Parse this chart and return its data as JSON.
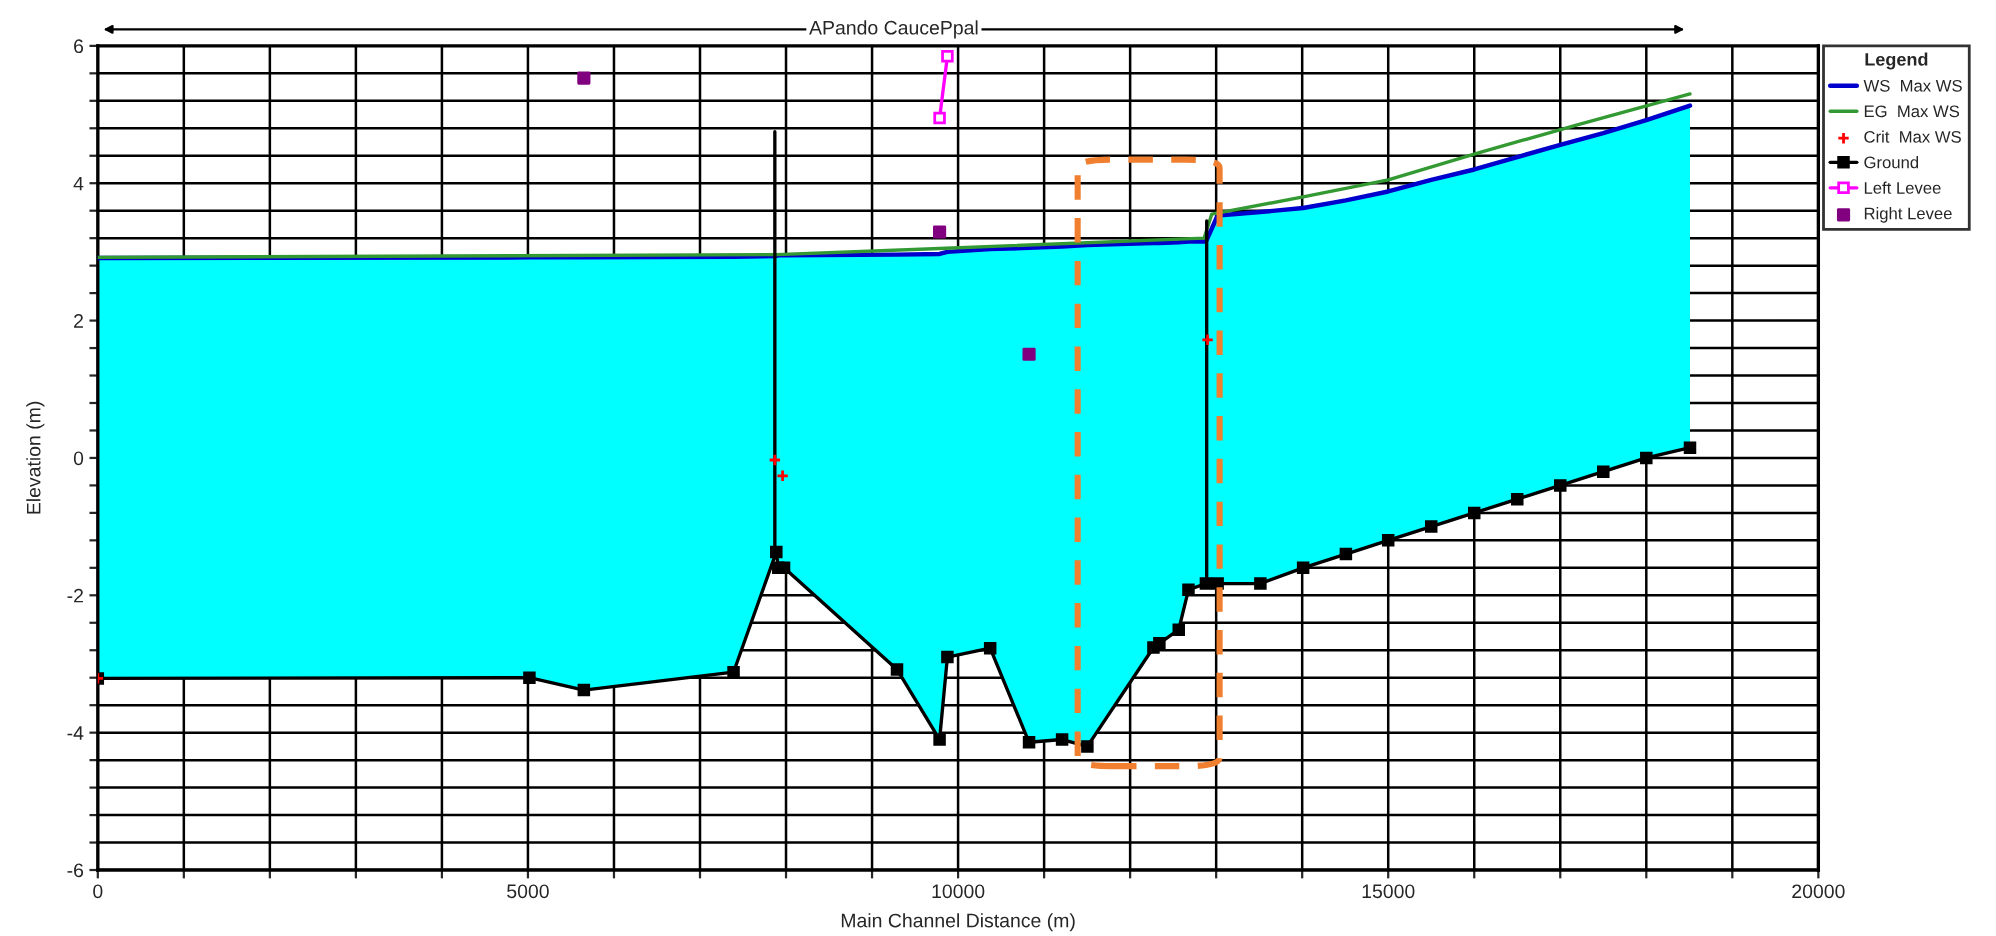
{
  "chart_data": {
    "type": "line",
    "xlabel": "Main Channel Distance (m)",
    "ylabel": "Elevation (m)",
    "legend_title": "Legend",
    "annotations": [
      "APando CaucePpal"
    ],
    "xlim": [
      0,
      20000
    ],
    "xticks": [
      0,
      {
        "value": 1000,
        "label": null
      },
      {
        "value": 2000,
        "label": null
      },
      {
        "value": 3000,
        "label": null
      },
      {
        "value": 4000,
        "label": null
      },
      5000,
      {
        "value": 6000,
        "label": null
      },
      {
        "value": 7000,
        "label": null
      },
      {
        "value": 8000,
        "label": null
      },
      {
        "value": 9000,
        "label": null
      },
      10000,
      {
        "value": 11000,
        "label": null
      },
      {
        "value": 12000,
        "label": null
      },
      {
        "value": 13000,
        "label": null
      },
      {
        "value": 14000,
        "label": null
      },
      15000,
      {
        "value": 16000,
        "label": null
      },
      {
        "value": 17000,
        "label": null
      },
      {
        "value": 18000,
        "label": null
      },
      {
        "value": 19000,
        "label": null
      },
      20000
    ],
    "ylim": [
      -6,
      6
    ],
    "yticks": [
      -6,
      {
        "value": -5.6,
        "label": null
      },
      {
        "value": -5.2,
        "label": null
      },
      {
        "value": -4.8,
        "label": null
      },
      {
        "value": -4.4,
        "label": null
      },
      -4,
      {
        "value": -3.6,
        "label": null
      },
      {
        "value": -3.2,
        "label": null
      },
      {
        "value": -2.8,
        "label": null
      },
      {
        "value": -2.4,
        "label": null
      },
      -2,
      {
        "value": -1.6,
        "label": null
      },
      {
        "value": -1.2,
        "label": null
      },
      {
        "value": -0.8,
        "label": null
      },
      {
        "value": -0.4,
        "label": null
      },
      0,
      {
        "value": 0.4,
        "label": null
      },
      {
        "value": 0.8,
        "label": null
      },
      {
        "value": 1.2,
        "label": null
      },
      {
        "value": 1.6,
        "label": null
      },
      2,
      {
        "value": 2.4,
        "label": null
      },
      {
        "value": 2.8,
        "label": null
      },
      {
        "value": 3.2,
        "label": null
      },
      {
        "value": 3.6,
        "label": null
      },
      4,
      {
        "value": 4.4,
        "label": null
      },
      {
        "value": 4.8,
        "label": null
      },
      {
        "value": 5.2,
        "label": null
      },
      {
        "value": 5.6,
        "label": null
      },
      6
    ],
    "grid": true,
    "legend": "right",
    "series": [
      {
        "name": "WS  Max WS",
        "color": "#0000cc",
        "marker": "none",
        "x": [
          0,
          5017,
          5650,
          7390,
          7887,
          7910,
          7977,
          9290,
          9785,
          9876,
          10373,
          10825,
          11209,
          11503,
          12271,
          12340,
          12565,
          12678,
          12881,
          13017,
          13514,
          14011,
          14508,
          15000,
          15500,
          16000,
          16500,
          17000,
          17500,
          18000,
          18508
        ],
        "values": [
          2.91,
          2.92,
          2.92,
          2.93,
          2.94,
          2.95,
          2.95,
          2.96,
          2.97,
          3.0,
          3.04,
          3.06,
          3.08,
          3.1,
          3.13,
          3.13,
          3.14,
          3.15,
          3.15,
          3.53,
          3.58,
          3.64,
          3.75,
          3.88,
          4.05,
          4.2,
          4.38,
          4.56,
          4.73,
          4.92,
          5.13
        ],
        "upper": [
          2.91,
          2.92,
          2.92,
          2.93,
          2.94,
          2.95,
          2.95,
          2.96,
          2.97,
          3.0,
          3.04,
          3.06,
          3.08,
          3.1,
          3.13,
          3.13,
          3.14,
          3.15,
          3.15,
          3.53,
          3.58,
          3.64,
          3.75,
          3.88,
          4.05,
          4.2,
          4.38,
          4.56,
          4.73,
          4.92,
          5.13
        ],
        "lower": [
          -3.21,
          -3.2,
          -3.38,
          -3.12,
          -1.37,
          -1.6,
          -1.6,
          -3.08,
          -4.1,
          -2.9,
          -2.77,
          -4.14,
          -4.1,
          -4.2,
          -2.76,
          -2.7,
          -2.5,
          -1.92,
          -1.83,
          -1.83,
          -1.83,
          -1.6,
          -1.4,
          -1.2,
          -1.0,
          -0.8,
          -0.6,
          -0.4,
          -0.2,
          0.0,
          0.15
        ]
      },
      {
        "name": "EG  Max WS",
        "color": "#339933",
        "marker": "none",
        "x": [
          0,
          7887,
          9785,
          12859,
          12949,
          14011,
          15000,
          16068,
          17198,
          18508
        ],
        "values": [
          2.92,
          2.96,
          3.05,
          3.2,
          3.55,
          3.8,
          4.05,
          4.45,
          4.85,
          5.3
        ]
      },
      {
        "name": "Crit  Max WS",
        "type": "scatter",
        "color": "#ff0000",
        "marker": "cross",
        "x": [
          0,
          7870,
          7960,
          12900
        ],
        "values": [
          -3.21,
          -0.03,
          -0.26,
          1.72
        ]
      },
      {
        "name": "Ground",
        "color": "#000000",
        "marker": "square",
        "x": [
          0,
          5017,
          5650,
          7390,
          7887,
          7910,
          7977,
          9290,
          9785,
          9876,
          10373,
          10825,
          11209,
          11503,
          12271,
          12340,
          12565,
          12678,
          12881,
          13017,
          13514,
          14011,
          14508,
          15000,
          15500,
          16000,
          16500,
          17000,
          17500,
          18000,
          18508
        ],
        "values": [
          -3.21,
          -3.2,
          -3.38,
          -3.12,
          -1.37,
          -1.6,
          -1.6,
          -3.08,
          -4.1,
          -2.9,
          -2.77,
          -4.14,
          -4.1,
          -4.2,
          -2.76,
          -2.7,
          -2.5,
          -1.92,
          -1.83,
          -1.83,
          -1.83,
          -1.6,
          -1.4,
          -1.2,
          -1.0,
          -0.8,
          -0.6,
          -0.4,
          -0.2,
          0.0,
          0.15
        ]
      },
      {
        "name": "Left Levee",
        "color": "#ff00ff",
        "marker": "square",
        "x": [
          9785,
          9876
        ],
        "values": [
          4.95,
          5.85
        ]
      },
      {
        "name": "Right Levee",
        "type": "scatter",
        "color": "#800080",
        "marker": "square",
        "x": [
          5650,
          9785,
          10825
        ],
        "values": [
          5.53,
          3.29,
          1.51
        ]
      },
      {
        "color": "#000000",
        "marker": "none",
        "x": [
          7870,
          7870
        ],
        "values": [
          -1.37,
          4.75
        ]
      },
      {
        "color": "#000000",
        "marker": "none",
        "x": [
          12890,
          12890
        ],
        "values": [
          -1.83,
          3.45
        ]
      }
    ]
  }
}
